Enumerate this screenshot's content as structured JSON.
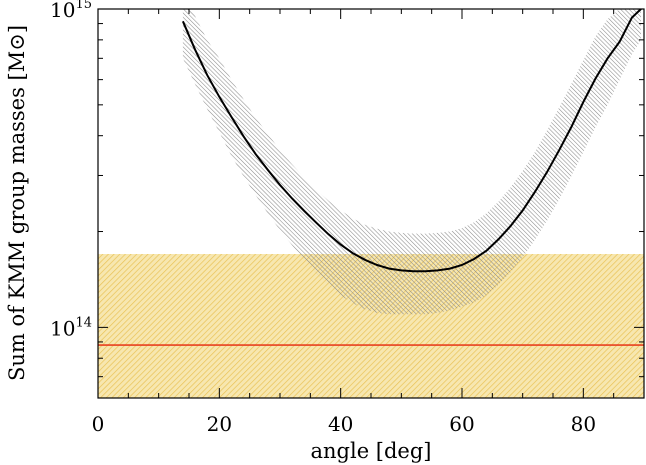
{
  "chart_data": {
    "type": "line",
    "xlabel": "angle [deg]",
    "ylabel": "Sum of KMM group masses [M⊙]",
    "xlim": [
      0,
      90
    ],
    "ylim": [
      60000000000000.0,
      1000000000000000.0
    ],
    "yscale": "log",
    "grid": false,
    "x_ticks": [
      0,
      20,
      40,
      60,
      80
    ],
    "x_tick_labels": [
      "0",
      "20",
      "40",
      "60",
      "80"
    ],
    "y_tick_labels": [
      {
        "value": 1000000000000000.0,
        "base": "10",
        "exp": "15"
      },
      {
        "value": 100000000000000.0,
        "base": "10",
        "exp": "14"
      }
    ],
    "x": [
      14,
      16,
      18,
      20,
      22,
      24,
      26,
      28,
      30,
      32,
      34,
      36,
      38,
      40,
      42,
      44,
      46,
      48,
      50,
      52,
      54,
      56,
      58,
      60,
      62,
      64,
      66,
      68,
      70,
      72,
      74,
      76,
      78,
      80,
      82,
      84,
      86,
      88,
      89.5
    ],
    "series": [
      {
        "values": [
          915000000000000.0,
          745000000000000.0,
          620000000000000.0,
          530000000000000.0,
          458000000000000.0,
          398000000000000.0,
          350000000000000.0,
          312000000000000.0,
          280000000000000.0,
          254000000000000.0,
          232000000000000.0,
          213000000000000.0,
          196000000000000.0,
          182000000000000.0,
          171000000000000.0,
          163000000000000.0,
          157000000000000.0,
          153000000000000.0,
          151000000000000.0,
          150000000000000.0,
          150000000000000.0,
          151000000000000.0,
          153000000000000.0,
          157000000000000.0,
          164000000000000.0,
          174000000000000.0,
          189000000000000.0,
          208000000000000.0,
          233000000000000.0,
          266000000000000.0,
          307000000000000.0,
          360000000000000.0,
          425000000000000.0,
          510000000000000.0,
          605000000000000.0,
          700000000000000.0,
          790000000000000.0,
          940000000000000.0,
          1000000000000000.0
        ],
        "color": "#000000"
      },
      {
        "values": [
          1100000000000000.0,
          950000000000000.0,
          800000000000000.0,
          700000000000000.0,
          600000000000000.0,
          520000000000000.0,
          455000000000000.0,
          405000000000000.0,
          360000000000000.0,
          325000000000000.0,
          295000000000000.0,
          270000000000000.0,
          250000000000000.0,
          233000000000000.0,
          220000000000000.0,
          210000000000000.0,
          204000000000000.0,
          200000000000000.0,
          198000000000000.0,
          197000000000000.0,
          197000000000000.0,
          198000000000000.0,
          200000000000000.0,
          205000000000000.0,
          214000000000000.0,
          228000000000000.0,
          248000000000000.0,
          275000000000000.0,
          310000000000000.0,
          355000000000000.0,
          415000000000000.0,
          490000000000000.0,
          580000000000000.0,
          690000000000000.0,
          820000000000000.0,
          930000000000000.0,
          1000000000000000.0,
          1100000000000000.0,
          1100000000000000.0
        ],
        "color": "#9a9a9a"
      },
      {
        "values": [
          700000000000000.0,
          580000000000000.0,
          485000000000000.0,
          410000000000000.0,
          345000000000000.0,
          298000000000000.0,
          260000000000000.0,
          228000000000000.0,
          202000000000000.0,
          181000000000000.0,
          163000000000000.0,
          148000000000000.0,
          136000000000000.0,
          126000000000000.0,
          119000000000000.0,
          114000000000000.0,
          111000000000000.0,
          110000000000000.0,
          110000000000000.0,
          110000000000000.0,
          110000000000000.0,
          111000000000000.0,
          113000000000000.0,
          116000000000000.0,
          120000000000000.0,
          126000000000000.0,
          136000000000000.0,
          149000000000000.0,
          166000000000000.0,
          188000000000000.0,
          216000000000000.0,
          252000000000000.0,
          298000000000000.0,
          355000000000000.0,
          425000000000000.0,
          500000000000000.0,
          600000000000000.0,
          720000000000000.0,
          800000000000000.0
        ],
        "color": "#9a9a9a"
      }
    ],
    "bands": [
      {
        "y_low": 60000000000000.0,
        "y_high": 170000000000000.0,
        "color": "#f0c850"
      }
    ],
    "hlines": [
      {
        "y": 88000000000000.0,
        "color": "#e8411f"
      }
    ]
  }
}
